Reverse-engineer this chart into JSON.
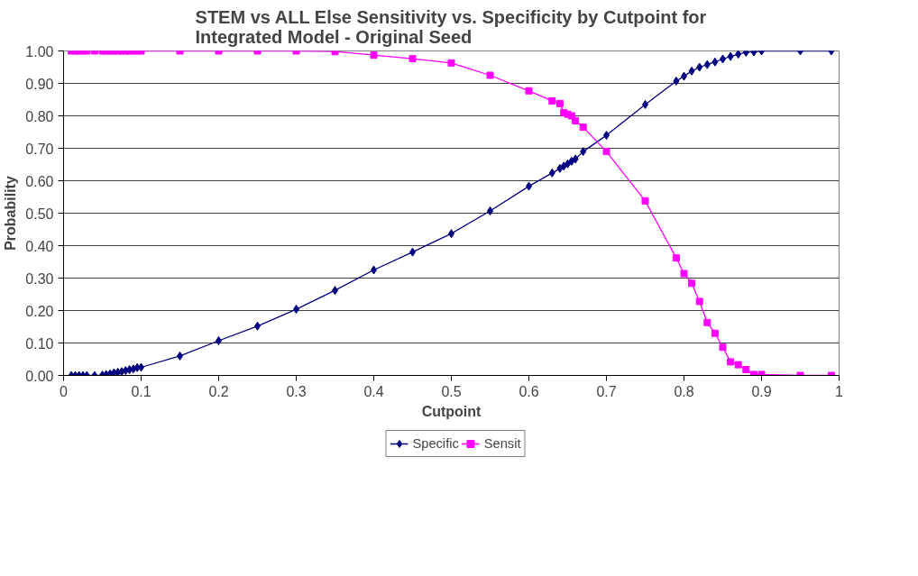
{
  "chart_data": {
    "type": "line",
    "title": "STEM vs ALL Else Sensitivity vs. Specificity by Cutpoint for\nIntegrated Model - Original Seed",
    "xlabel": "Cutpoint",
    "ylabel": "Probability",
    "x": [
      0.01,
      0.015,
      0.02,
      0.025,
      0.03,
      0.04,
      0.05,
      0.055,
      0.06,
      0.065,
      0.07,
      0.075,
      0.08,
      0.085,
      0.09,
      0.095,
      0.1,
      0.15,
      0.2,
      0.25,
      0.3,
      0.35,
      0.4,
      0.45,
      0.5,
      0.55,
      0.6,
      0.63,
      0.64,
      0.645,
      0.65,
      0.655,
      0.66,
      0.67,
      0.7,
      0.75,
      0.79,
      0.8,
      0.81,
      0.82,
      0.83,
      0.84,
      0.85,
      0.86,
      0.87,
      0.88,
      0.89,
      0.9,
      0.95,
      0.99
    ],
    "series": [
      {
        "name": "Specific",
        "color": "#000080",
        "marker": "diamond",
        "values": [
          0,
          0,
          0,
          0,
          0,
          0,
          0.001,
          0.003,
          0.005,
          0.008,
          0.01,
          0.012,
          0.015,
          0.018,
          0.02,
          0.024,
          0.025,
          0.06,
          0.107,
          0.152,
          0.204,
          0.262,
          0.325,
          0.38,
          0.437,
          0.507,
          0.583,
          0.624,
          0.638,
          0.645,
          0.652,
          0.66,
          0.667,
          0.69,
          0.74,
          0.835,
          0.907,
          0.922,
          0.938,
          0.95,
          0.958,
          0.966,
          0.975,
          0.983,
          0.99,
          0.996,
          0.997,
          1,
          1,
          1
        ]
      },
      {
        "name": "Sensit",
        "color": "#ff00ff",
        "marker": "square",
        "values": [
          1,
          1,
          1,
          1,
          1,
          1,
          1,
          1,
          1,
          1,
          1,
          1,
          1,
          1,
          1,
          1,
          1,
          1,
          1,
          1,
          1,
          0.998,
          0.987,
          0.976,
          0.963,
          0.925,
          0.877,
          0.846,
          0.838,
          0.81,
          0.805,
          0.8,
          0.785,
          0.765,
          0.69,
          0.538,
          0.362,
          0.314,
          0.284,
          0.228,
          0.163,
          0.13,
          0.087,
          0.042,
          0.033,
          0.018,
          0.003,
          0.003,
          0,
          0
        ]
      }
    ],
    "xlim": [
      0,
      1
    ],
    "xticks": [
      0,
      0.1,
      0.2,
      0.3,
      0.4,
      0.5,
      0.6,
      0.7,
      0.8,
      0.9,
      1
    ],
    "ylim": [
      0,
      1
    ],
    "yticks": [
      {
        "value": 0,
        "label": "0.00"
      },
      {
        "value": 0.1,
        "label": "0.10"
      },
      {
        "value": 0.2,
        "label": "0.20"
      },
      {
        "value": 0.3,
        "label": "0.30"
      },
      {
        "value": 0.4,
        "label": "0.40"
      },
      {
        "value": 0.5,
        "label": "0.50"
      },
      {
        "value": 0.6,
        "label": "0.60"
      },
      {
        "value": 0.7,
        "label": "0.70"
      },
      {
        "value": 0.8,
        "label": "0.80"
      },
      {
        "value": 0.9,
        "label": "0.90"
      },
      {
        "value": 1,
        "label": "1.00"
      }
    ],
    "grid": "y",
    "legend": "bottom",
    "line_style": "solid"
  }
}
